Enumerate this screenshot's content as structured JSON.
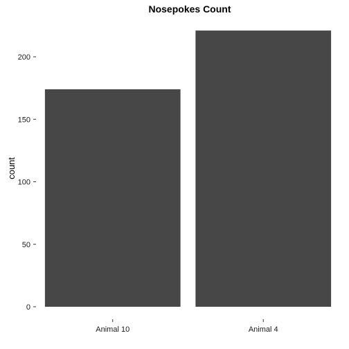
{
  "chart_data": {
    "type": "bar",
    "title": "Nosepokes Count",
    "xlabel": "",
    "ylabel": "count",
    "categories": [
      "Animal 10",
      "Animal 4"
    ],
    "values": [
      174,
      221
    ],
    "ylim": [
      0,
      230
    ],
    "yticks": [
      0,
      50,
      100,
      150,
      200
    ],
    "grid": false,
    "bar_color": "#474747"
  }
}
